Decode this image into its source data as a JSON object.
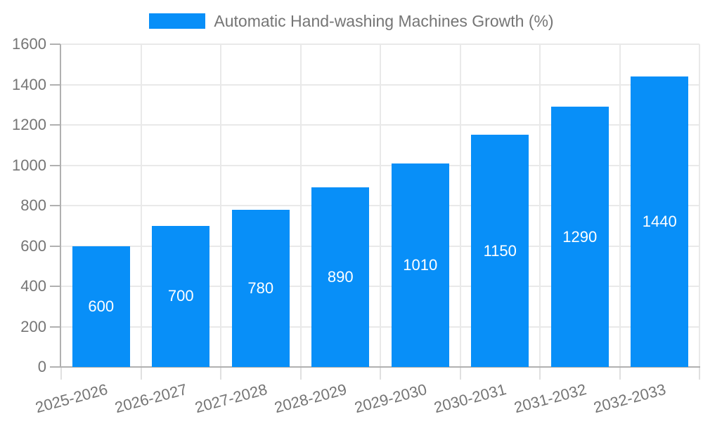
{
  "legend": {
    "items": [
      {
        "label": "Automatic Hand-washing Machines Growth (%)",
        "color": "#088ff8"
      }
    ]
  },
  "chart_data": {
    "type": "bar",
    "title": "",
    "categories": [
      "2025-2026",
      "2026-2027",
      "2027-2028",
      "2028-2029",
      "2029-2030",
      "2030-2031",
      "2031-2032",
      "2032-2033"
    ],
    "series": [
      {
        "name": "Automatic Hand-washing Machines Growth (%)",
        "color": "#088ff8",
        "values": [
          600,
          700,
          780,
          890,
          1010,
          1150,
          1290,
          1440
        ]
      }
    ],
    "value_labels": [
      "600",
      "700",
      "780",
      "890",
      "1010",
      "1150",
      "1290",
      "1440"
    ],
    "value_label_color": "#ffffff",
    "xlabel": "",
    "ylabel": "",
    "ylim": [
      0,
      1600
    ],
    "yticks": [
      0,
      200,
      400,
      600,
      800,
      1000,
      1200,
      1400,
      1600
    ],
    "grid": true,
    "legend_position": "top-center",
    "axis_label_color": "#757575",
    "gridline_color": "#e9e9e9"
  }
}
